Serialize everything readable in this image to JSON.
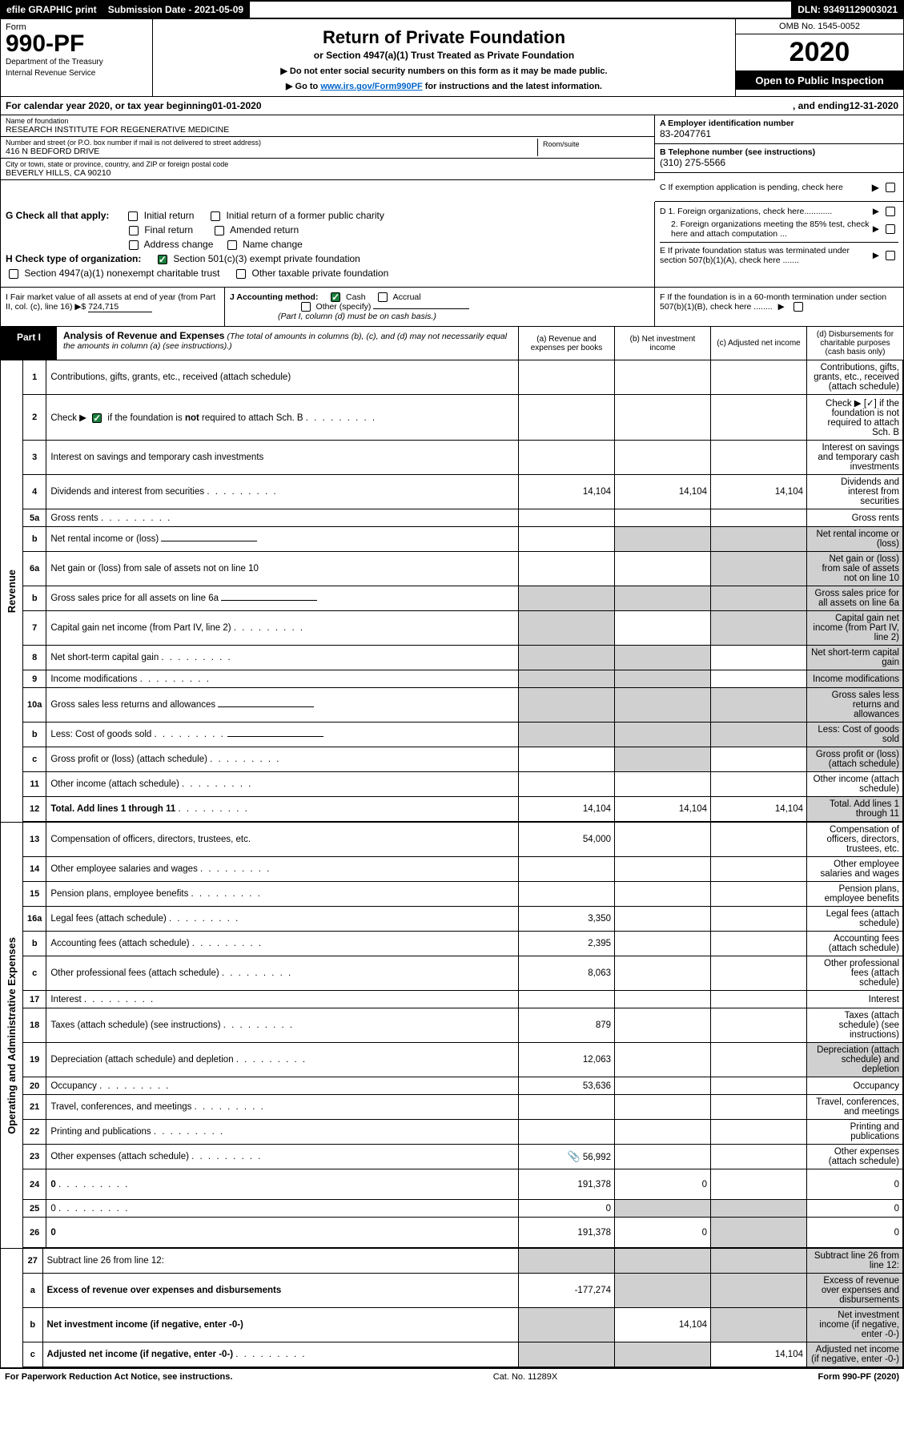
{
  "topbar": {
    "efile": "efile GRAPHIC print",
    "submission": "Submission Date - 2021-05-09",
    "dln": "DLN: 93491129003021"
  },
  "header": {
    "form_word": "Form",
    "form_number": "990-PF",
    "dept1": "Department of the Treasury",
    "dept2": "Internal Revenue Service",
    "title": "Return of Private Foundation",
    "subtitle": "or Section 4947(a)(1) Trust Treated as Private Foundation",
    "note1": "▶ Do not enter social security numbers on this form as it may be made public.",
    "note2_prefix": "▶ Go to ",
    "note2_link": "www.irs.gov/Form990PF",
    "note2_suffix": " for instructions and the latest information.",
    "omb": "OMB No. 1545-0052",
    "year": "2020",
    "open": "Open to Public Inspection"
  },
  "calendar": {
    "prefix": "For calendar year 2020, or tax year beginning ",
    "begin": "01-01-2020",
    "mid": ", and ending ",
    "end": "12-31-2020"
  },
  "info": {
    "name_label": "Name of foundation",
    "name": "RESEARCH INSTITUTE FOR REGENERATIVE MEDICINE",
    "addr_label": "Number and street (or P.O. box number if mail is not delivered to street address)",
    "addr": "416 N BEDFORD DRIVE",
    "room_label": "Room/suite",
    "city_label": "City or town, state or province, country, and ZIP or foreign postal code",
    "city": "BEVERLY HILLS, CA  90210",
    "ein_label": "A Employer identification number",
    "ein": "83-2047761",
    "phone_label": "B Telephone number (see instructions)",
    "phone": "(310) 275-5566",
    "pending": "C If exemption application is pending, check here"
  },
  "checks": {
    "G": "G Check all that apply:",
    "G_items": [
      "Initial return",
      "Initial return of a former public charity",
      "Final return",
      "Amended return",
      "Address change",
      "Name change"
    ],
    "H": "H Check type of organization:",
    "H1": "Section 501(c)(3) exempt private foundation",
    "H2": "Section 4947(a)(1) nonexempt charitable trust",
    "H3": "Other taxable private foundation",
    "D1": "D 1. Foreign organizations, check here............",
    "D2": "2. Foreign organizations meeting the 85% test, check here and attach computation ...",
    "E": "E  If private foundation status was terminated under section 507(b)(1)(A), check here .......",
    "I": "I Fair market value of all assets at end of year (from Part II, col. (c), line 16) ▶$ ",
    "I_val": "724,715",
    "J": "J Accounting method:",
    "J1": "Cash",
    "J2": "Accrual",
    "J3": "Other (specify)",
    "J_note": "(Part I, column (d) must be on cash basis.)",
    "F": "F  If the foundation is in a 60-month termination under section 507(b)(1)(B), check here ........"
  },
  "part1": {
    "label": "Part I",
    "title": "Analysis of Revenue and Expenses",
    "subtitle": "(The total of amounts in columns (b), (c), and (d) may not necessarily equal the amounts in column (a) (see instructions).)",
    "cols": {
      "a": "(a)   Revenue and expenses per books",
      "b": "(b)  Net investment income",
      "c": "(c)  Adjusted net income",
      "d": "(d)  Disbursements for charitable purposes (cash basis only)"
    }
  },
  "revenue_label": "Revenue",
  "expenses_label": "Operating and Administrative Expenses",
  "rows_revenue": [
    {
      "n": "1",
      "d": "Contributions, gifts, grants, etc., received (attach schedule)"
    },
    {
      "n": "2",
      "d": "Check ▶ [✓] if the foundation is not required to attach Sch. B",
      "checked": true,
      "dots": true
    },
    {
      "n": "3",
      "d": "Interest on savings and temporary cash investments"
    },
    {
      "n": "4",
      "d": "Dividends and interest from securities",
      "a": "14,104",
      "b": "14,104",
      "c": "14,104",
      "dots": true
    },
    {
      "n": "5a",
      "d": "Gross rents",
      "dots": true
    },
    {
      "n": "b",
      "d": "Net rental income or (loss)",
      "inline": true,
      "shade_bcd": true
    },
    {
      "n": "6a",
      "d": "Net gain or (loss) from sale of assets not on line 10",
      "shade_cd": true
    },
    {
      "n": "b",
      "d": "Gross sales price for all assets on line 6a",
      "inline": true,
      "shade_abcd": true
    },
    {
      "n": "7",
      "d": "Capital gain net income (from Part IV, line 2)",
      "dots": true,
      "shade_a": true,
      "shade_cd": true
    },
    {
      "n": "8",
      "d": "Net short-term capital gain",
      "dots": true,
      "shade_ab": true,
      "shade_d": true
    },
    {
      "n": "9",
      "d": "Income modifications",
      "dots": true,
      "shade_ab": true,
      "shade_d": true
    },
    {
      "n": "10a",
      "d": "Gross sales less returns and allowances",
      "inline": true,
      "shade_abcd": true
    },
    {
      "n": "b",
      "d": "Less: Cost of goods sold",
      "inline": true,
      "dots": true,
      "shade_abcd": true
    },
    {
      "n": "c",
      "d": "Gross profit or (loss) (attach schedule)",
      "dots": true,
      "shade_b": true,
      "shade_d": true
    },
    {
      "n": "11",
      "d": "Other income (attach schedule)",
      "dots": true
    },
    {
      "n": "12",
      "d": "Total. Add lines 1 through 11",
      "bold": true,
      "dots": true,
      "a": "14,104",
      "b": "14,104",
      "c": "14,104",
      "shade_d": true
    }
  ],
  "rows_expenses": [
    {
      "n": "13",
      "d": "Compensation of officers, directors, trustees, etc.",
      "a": "54,000"
    },
    {
      "n": "14",
      "d": "Other employee salaries and wages",
      "dots": true
    },
    {
      "n": "15",
      "d": "Pension plans, employee benefits",
      "dots": true
    },
    {
      "n": "16a",
      "d": "Legal fees (attach schedule)",
      "dots": true,
      "a": "3,350"
    },
    {
      "n": "b",
      "d": "Accounting fees (attach schedule)",
      "dots": true,
      "a": "2,395"
    },
    {
      "n": "c",
      "d": "Other professional fees (attach schedule)",
      "dots": true,
      "a": "8,063"
    },
    {
      "n": "17",
      "d": "Interest",
      "dots": true
    },
    {
      "n": "18",
      "d": "Taxes (attach schedule) (see instructions)",
      "dots": true,
      "a": "879"
    },
    {
      "n": "19",
      "d": "Depreciation (attach schedule) and depletion",
      "dots": true,
      "a": "12,063",
      "shade_d": true
    },
    {
      "n": "20",
      "d": "Occupancy",
      "dots": true,
      "a": "53,636"
    },
    {
      "n": "21",
      "d": "Travel, conferences, and meetings",
      "dots": true
    },
    {
      "n": "22",
      "d": "Printing and publications",
      "dots": true
    },
    {
      "n": "23",
      "d": "Other expenses (attach schedule)",
      "dots": true,
      "a": "56,992",
      "attach": true
    },
    {
      "n": "24",
      "d": "0",
      "bold": true,
      "dots": true,
      "a": "191,378",
      "b": "0",
      "tall": true
    },
    {
      "n": "25",
      "d": "0",
      "dots": true,
      "a": "0",
      "shade_bc": true
    },
    {
      "n": "26",
      "d": "0",
      "bold": true,
      "a": "191,378",
      "b": "0",
      "tall": true,
      "shade_c": true
    }
  ],
  "rows_bottom": [
    {
      "n": "27",
      "d": "Subtract line 26 from line 12:",
      "shade_all": true
    },
    {
      "n": "a",
      "d": "Excess of revenue over expenses and disbursements",
      "bold": true,
      "a": "-177,274",
      "shade_bcd": true,
      "tall": true
    },
    {
      "n": "b",
      "d": "Net investment income (if negative, enter -0-)",
      "bold": true,
      "b": "14,104",
      "shade_a": true,
      "shade_cd": true
    },
    {
      "n": "c",
      "d": "Adjusted net income (if negative, enter -0-)",
      "bold": true,
      "dots": true,
      "c": "14,104",
      "shade_ab": true,
      "shade_d": true
    }
  ],
  "footer": {
    "left": "For Paperwork Reduction Act Notice, see instructions.",
    "mid": "Cat. No. 11289X",
    "right": "Form 990-PF (2020)"
  }
}
